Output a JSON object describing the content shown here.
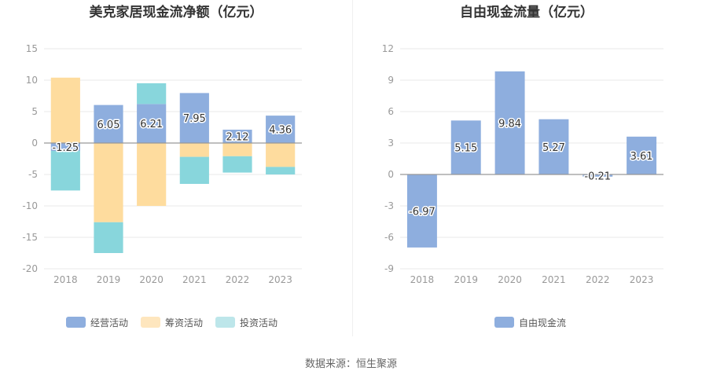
{
  "source_text": "数据来源：恒生聚源",
  "colors": {
    "operating": "#8eaede",
    "financing": "#fedc9e",
    "investing": "#88d6dc",
    "financing_legend": "#fee6be",
    "investing_legend": "#bde6ea",
    "fcf": "#8eaede"
  },
  "chart_data": [
    {
      "type": "bar",
      "stacked": true,
      "title": "美克家居现金流净额（亿元）",
      "categories": [
        "2018",
        "2019",
        "2020",
        "2021",
        "2022",
        "2023"
      ],
      "ylim": [
        -20,
        15
      ],
      "yticks": [
        -20,
        -15,
        -10,
        -5,
        0,
        5,
        10,
        15
      ],
      "grid": true,
      "legend_position": "bottom",
      "series": [
        {
          "name": "经营活动",
          "values": [
            -1.25,
            6.05,
            6.21,
            7.95,
            2.12,
            4.36
          ],
          "labels": [
            "-1.25",
            "6.05",
            "6.21",
            "7.95",
            "2.12",
            "4.36"
          ]
        },
        {
          "name": "筹资活动",
          "values": [
            10.4,
            -12.6,
            -10.0,
            -2.2,
            -2.1,
            -3.8
          ]
        },
        {
          "name": "投资活动",
          "values": [
            -6.3,
            -4.9,
            3.3,
            -4.3,
            -2.6,
            -1.2
          ]
        }
      ]
    },
    {
      "type": "bar",
      "title": "自由现金流量（亿元）",
      "categories": [
        "2018",
        "2019",
        "2020",
        "2021",
        "2022",
        "2023"
      ],
      "ylim": [
        -9,
        12
      ],
      "yticks": [
        -9,
        -6,
        -3,
        0,
        3,
        6,
        9,
        12
      ],
      "grid": true,
      "legend_position": "bottom",
      "series": [
        {
          "name": "自由现金流",
          "values": [
            -6.97,
            5.15,
            9.84,
            5.27,
            -0.21,
            3.61
          ],
          "labels": [
            "-6.97",
            "5.15",
            "9.84",
            "5.27",
            "-0.21",
            "3.61"
          ]
        }
      ]
    }
  ]
}
